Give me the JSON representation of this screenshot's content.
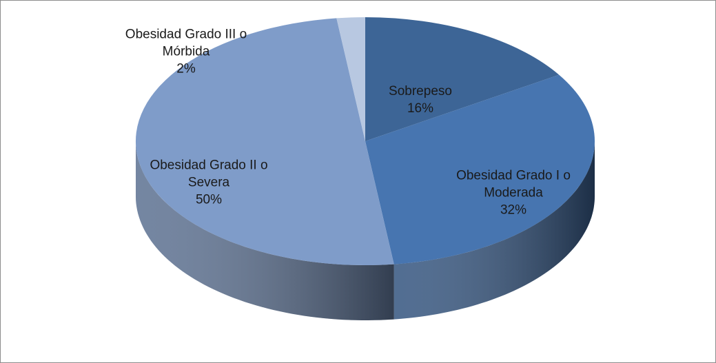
{
  "chart_data": {
    "type": "pie3d",
    "categories": [
      "Sobrepeso",
      "Obesidad Grado I o Moderada",
      "Obesidad Grado II o Severa",
      "Obesidad Grado III o Mórbida"
    ],
    "values": [
      16,
      32,
      50,
      2
    ],
    "value_labels": [
      "16%",
      "32%",
      "50%",
      "2%"
    ],
    "colors": [
      "#3d6596",
      "#4775b0",
      "#7f9cc9",
      "#b8c8e1"
    ]
  }
}
